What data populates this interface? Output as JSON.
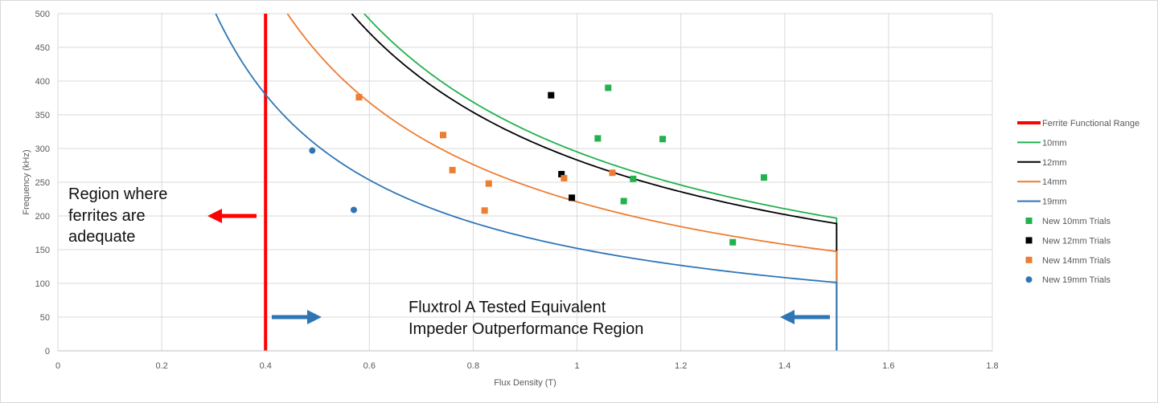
{
  "chart_data": {
    "type": "scatter",
    "title": "",
    "xlabel": "Flux Density (T)",
    "ylabel": "Frequency (kHz)",
    "xlim": [
      0,
      1.8
    ],
    "ylim": [
      0,
      500
    ],
    "x_ticks": [
      0,
      0.2,
      0.4,
      0.6,
      0.8,
      1,
      1.2,
      1.4,
      1.6,
      1.8
    ],
    "x_tick_labels": [
      "0",
      "0.2",
      "0.4",
      "0.6",
      "0.8",
      "1",
      "1.2",
      "1.4",
      "1.6",
      "1.8"
    ],
    "y_ticks": [
      0,
      50,
      100,
      150,
      200,
      250,
      300,
      350,
      400,
      450,
      500
    ],
    "y_tick_labels": [
      "0",
      "50",
      "100",
      "150",
      "200",
      "250",
      "300",
      "350",
      "400",
      "450",
      "500"
    ],
    "grid": true,
    "legend_position": "right",
    "curves": [
      {
        "name": "Ferrite Functional Range",
        "kind": "vline",
        "x": 0.4,
        "color": "#ff0000"
      },
      {
        "name": "10mm",
        "kind": "hyperbola",
        "k": 295,
        "xmax": 1.5,
        "color": "#22b14c"
      },
      {
        "name": "12mm",
        "kind": "hyperbola",
        "k": 283,
        "xmax": 1.5,
        "color": "#000000"
      },
      {
        "name": "14mm",
        "kind": "hyperbola",
        "k": 221,
        "xmax": 1.5,
        "color": "#ed7d31"
      },
      {
        "name": "19mm",
        "kind": "hyperbola",
        "k": 152,
        "xmax": 1.5,
        "color": "#2e75b6"
      }
    ],
    "series": [
      {
        "name": "New 10mm Trials",
        "marker": "square",
        "color": "#22b14c",
        "points": [
          [
            1.06,
            390
          ],
          [
            1.04,
            315
          ],
          [
            1.165,
            314
          ],
          [
            1.36,
            257
          ],
          [
            1.108,
            255
          ],
          [
            1.09,
            222
          ],
          [
            1.3,
            161
          ]
        ]
      },
      {
        "name": "New 12mm Trials",
        "marker": "square",
        "color": "#000000",
        "points": [
          [
            0.95,
            379
          ],
          [
            0.97,
            262
          ],
          [
            0.99,
            227
          ]
        ]
      },
      {
        "name": "New 14mm Trials",
        "marker": "square",
        "color": "#ed7d31",
        "points": [
          [
            0.58,
            376
          ],
          [
            0.742,
            320
          ],
          [
            0.76,
            268
          ],
          [
            0.975,
            256
          ],
          [
            1.068,
            264
          ],
          [
            0.83,
            248
          ],
          [
            0.822,
            208
          ]
        ]
      },
      {
        "name": "New 19mm Trials",
        "marker": "circle",
        "color": "#2e75b6",
        "points": [
          [
            0.49,
            297
          ],
          [
            0.57,
            209
          ]
        ]
      }
    ],
    "annotations": {
      "ferrite_region": [
        "Region where",
        "ferrites are",
        "adequate"
      ],
      "outperformance_region": [
        "Fluxtrol A Tested Equivalent",
        "Impeder Outperformance Region"
      ]
    }
  }
}
